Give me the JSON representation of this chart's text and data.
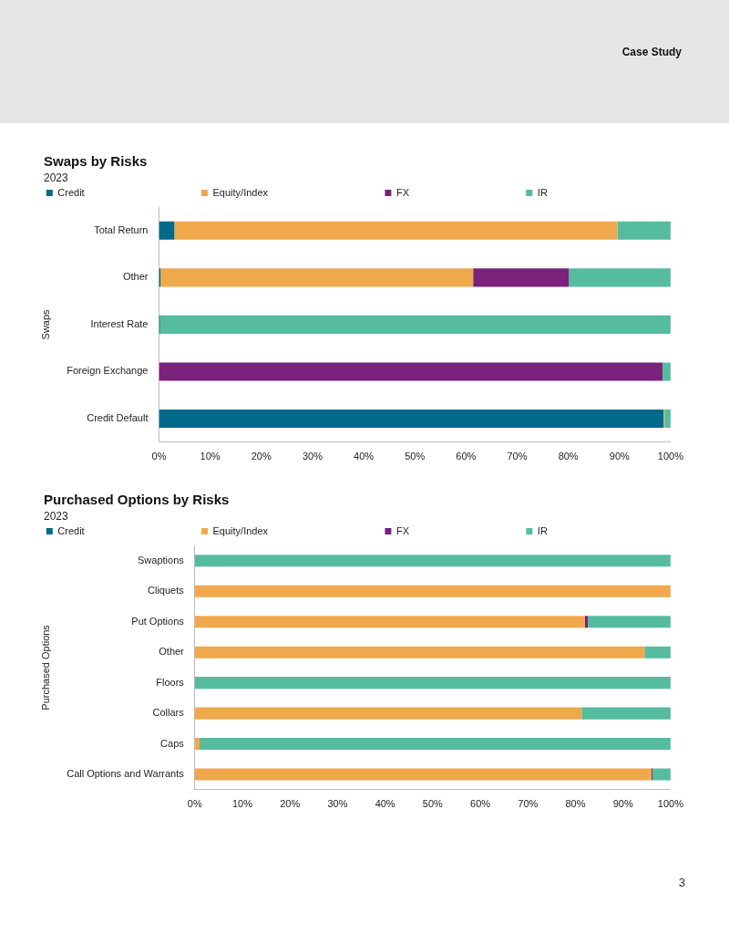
{
  "chart_data": [
    {
      "type": "bar",
      "orientation": "horizontal",
      "stacked": true,
      "title": "Swaps by Risks",
      "subtitle": "2023",
      "ylabel": "Swaps",
      "annotations": [
        "Case Study"
      ],
      "categories": [
        "Total Return",
        "Other",
        "Interest Rate",
        "Foreign Exchange",
        "Credit Default"
      ],
      "series": [
        {
          "name": "Credit",
          "color": "#006a8a",
          "values": [
            3,
            0.3,
            0.2,
            0,
            98.6
          ]
        },
        {
          "name": "Equity/Index",
          "color": "#f0a84c",
          "values": [
            86.6,
            61.1,
            0,
            0,
            0.2
          ]
        },
        {
          "name": "FX",
          "color": "#7a227c",
          "values": [
            0,
            18.7,
            0,
            98.4,
            0
          ]
        },
        {
          "name": "IR",
          "color": "#56bc9f",
          "values": [
            10.4,
            19.9,
            99.8,
            1.6,
            1.2
          ]
        }
      ],
      "xlim": [
        0,
        100
      ],
      "xticks": [
        {
          "value": 0,
          "label": "0%"
        },
        {
          "value": 10,
          "label": "10%"
        },
        {
          "value": 20,
          "label": "20%"
        },
        {
          "value": 30,
          "label": "30%"
        },
        {
          "value": 40,
          "label": "40%"
        },
        {
          "value": 50,
          "label": "50%"
        },
        {
          "value": 60,
          "label": "60%"
        },
        {
          "value": 70,
          "label": "70%"
        },
        {
          "value": 80,
          "label": "80%"
        },
        {
          "value": 90,
          "label": "90%"
        },
        {
          "value": 100,
          "label": "100%"
        }
      ],
      "grid": false,
      "legend": "top"
    },
    {
      "type": "bar",
      "orientation": "horizontal",
      "stacked": true,
      "title": "Purchased Options by Risks",
      "subtitle": "2023",
      "ylabel": "Purchased Options",
      "annotations": [
        "3"
      ],
      "categories": [
        "Swaptions",
        "Cliquets",
        "Put Options",
        "Other",
        "Floors",
        "Collars",
        "Caps",
        "Call Options and Warrants"
      ],
      "series": [
        {
          "name": "Credit",
          "color": "#006a8a",
          "values": [
            0,
            0,
            0,
            0,
            0,
            0,
            0,
            0
          ]
        },
        {
          "name": "Equity/Index",
          "color": "#f0a84c",
          "values": [
            0,
            100,
            82,
            94.5,
            0,
            81.3,
            1,
            96
          ]
        },
        {
          "name": "FX",
          "color": "#7a227c",
          "values": [
            0,
            0,
            0.6,
            0,
            0,
            0,
            0,
            0.2
          ]
        },
        {
          "name": "IR",
          "color": "#56bc9f",
          "values": [
            100,
            0,
            17.4,
            5.5,
            100,
            18.7,
            99,
            3.8
          ]
        }
      ],
      "xlim": [
        0,
        100
      ],
      "xticks": [
        {
          "value": 0,
          "label": "0%"
        },
        {
          "value": 10,
          "label": "10%"
        },
        {
          "value": 20,
          "label": "20%"
        },
        {
          "value": 30,
          "label": "30%"
        },
        {
          "value": 40,
          "label": "40%"
        },
        {
          "value": 50,
          "label": "50%"
        },
        {
          "value": 60,
          "label": "60%"
        },
        {
          "value": 70,
          "label": "70%"
        },
        {
          "value": 80,
          "label": "80%"
        },
        {
          "value": 90,
          "label": "90%"
        },
        {
          "value": 100,
          "label": "100%"
        }
      ],
      "grid": false,
      "legend": "top"
    }
  ]
}
